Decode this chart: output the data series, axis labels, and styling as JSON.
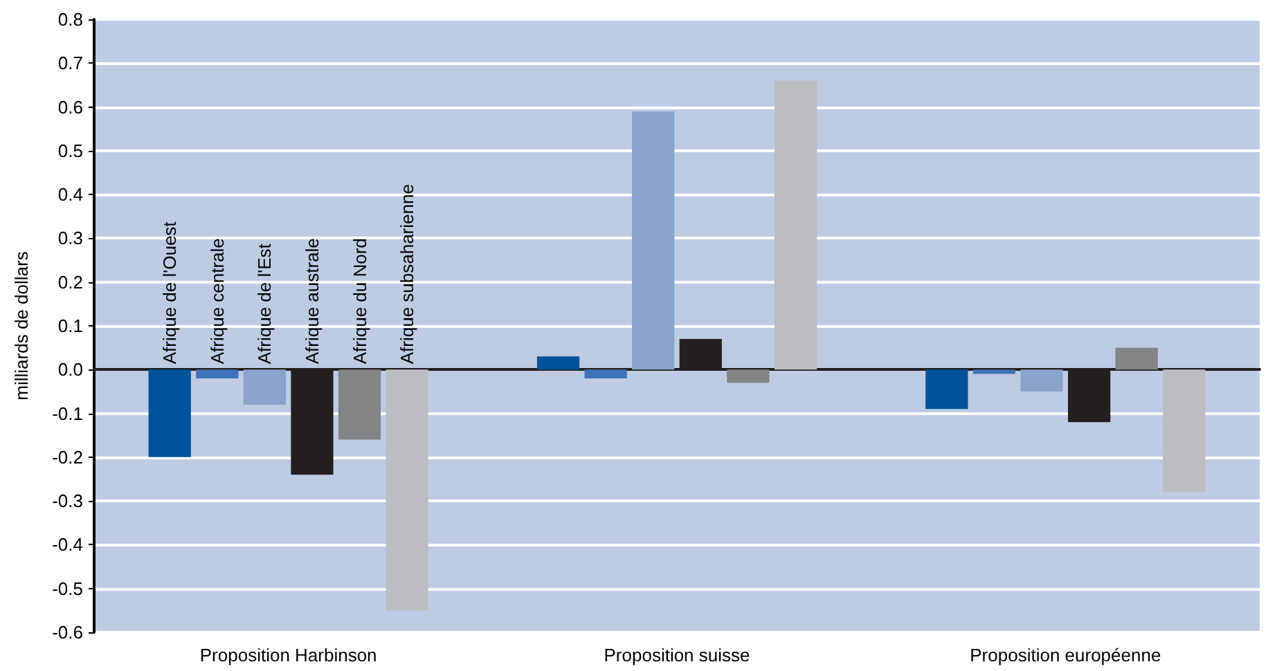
{
  "chart_data": {
    "type": "bar",
    "ylabel": "milliards de dollars",
    "categories": [
      "Proposition Harbinson",
      "Proposition suisse",
      "Proposition européenne"
    ],
    "series": [
      {
        "name": "Afrique de l'Ouest",
        "color": "#00539b",
        "values": [
          -0.2,
          0.03,
          -0.09
        ]
      },
      {
        "name": "Afrique centrale",
        "color": "#3f73b5",
        "values": [
          -0.02,
          -0.02,
          -0.01
        ]
      },
      {
        "name": "Afrique de l'Est",
        "color": "#8aa3cb",
        "values": [
          -0.08,
          0.59,
          -0.05
        ]
      },
      {
        "name": "Afrique australe",
        "color": "#231f20",
        "values": [
          -0.24,
          0.07,
          -0.12
        ]
      },
      {
        "name": "Afrique du Nord",
        "color": "#838486",
        "values": [
          -0.16,
          -0.03,
          0.05
        ]
      },
      {
        "name": "Afrique subsaharienne",
        "color": "#bcbdc0",
        "values": [
          -0.55,
          0.66,
          -0.28
        ]
      }
    ],
    "ylim": [
      -0.6,
      0.8
    ],
    "yticks": [
      -0.6,
      -0.5,
      -0.4,
      -0.3,
      -0.2,
      -0.1,
      {
        "value": 0,
        "label": "0.0"
      },
      0.1,
      0.2,
      0.3,
      0.4,
      0.5,
      0.6,
      0.7,
      0.8
    ],
    "grid": "y",
    "legend": false
  }
}
